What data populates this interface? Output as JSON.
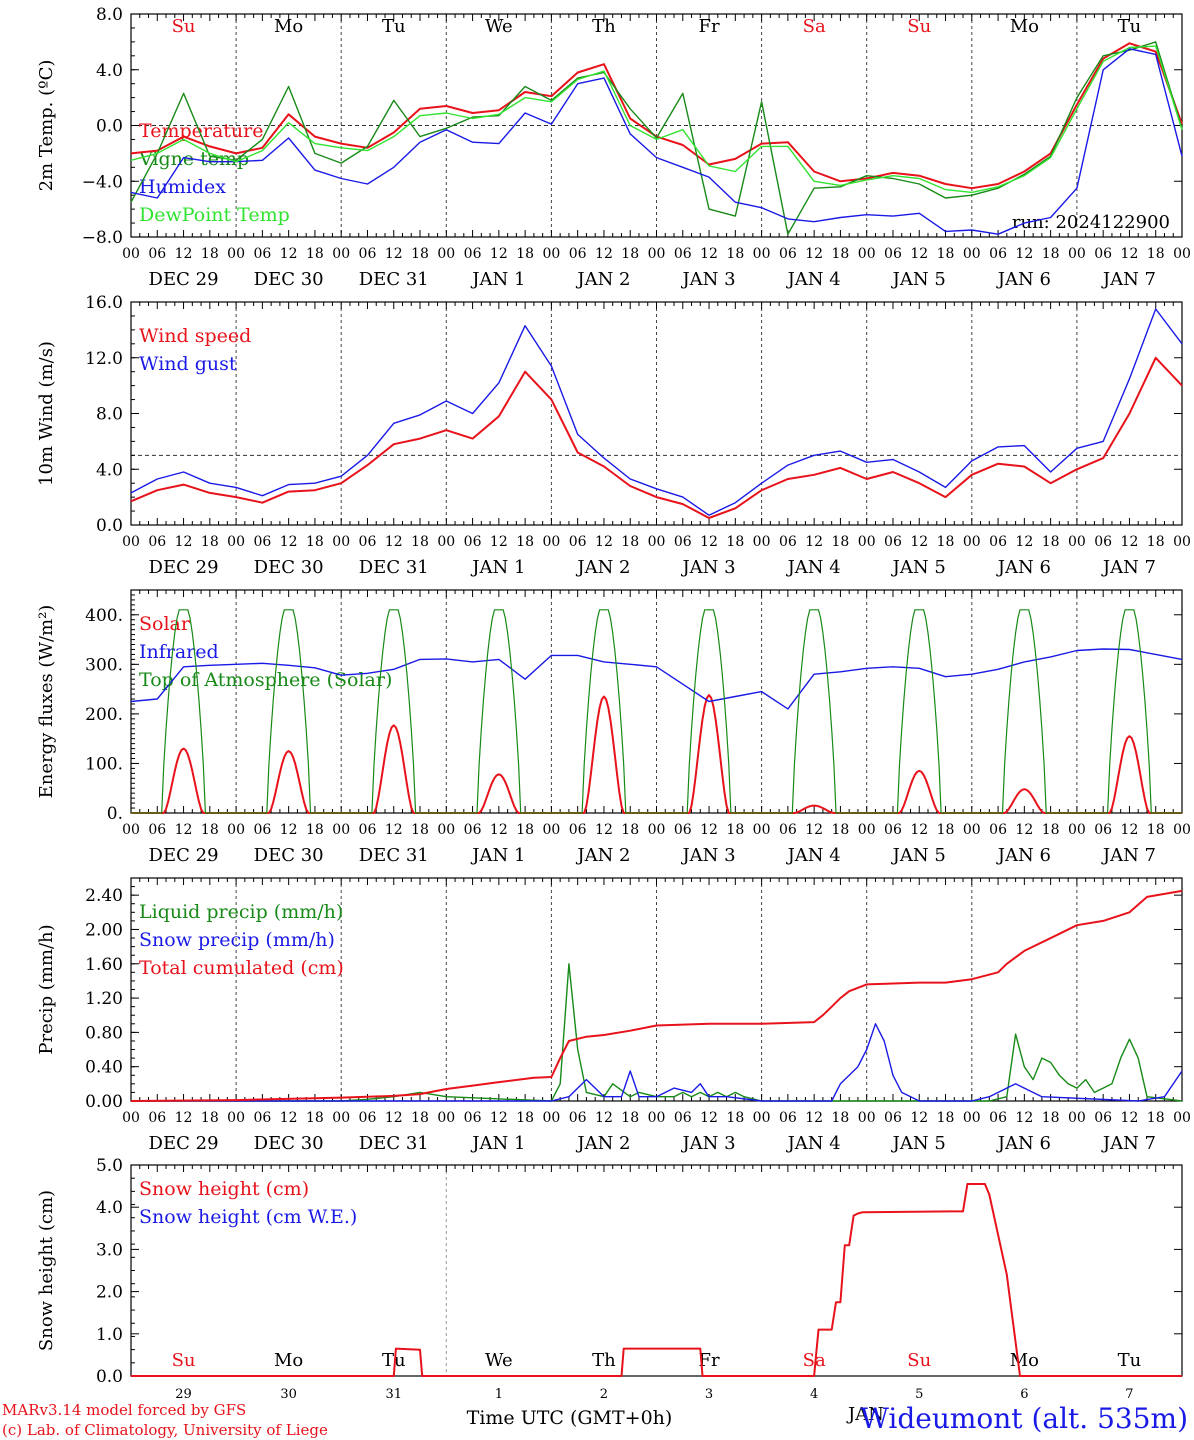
{
  "credits": {
    "model": "MARv3.14 model forced by GFS",
    "lab": "(c) Lab. of Climatology, University of Liege"
  },
  "location": "Wideumont (alt. 535m)",
  "run_label": "run: 2024122900",
  "colors": {
    "red": "#e8121b",
    "green": "#178a17",
    "blue": "#1a1ae6",
    "lightgreen": "#31e331",
    "weekend": "#e8121b",
    "weekday": "#000000"
  },
  "time_axis": {
    "hour_ticks": [
      "00",
      "06",
      "12",
      "18"
    ],
    "day_labels": [
      "DEC 29",
      "DEC 30",
      "DEC 31",
      "JAN  1",
      "JAN  2",
      "JAN  3",
      "JAN  4",
      "JAN  5",
      "JAN  6",
      "JAN  7"
    ],
    "weekdays": [
      "Su",
      "Mo",
      "Tu",
      "We",
      "Th",
      "Fr",
      "Sa",
      "Su",
      "Mo",
      "Tu"
    ],
    "weekend_flags": [
      true,
      false,
      false,
      false,
      false,
      false,
      true,
      true,
      false,
      false
    ],
    "bottom_day_numbers": [
      "29",
      "30",
      "31",
      "1",
      "2",
      "3",
      "4",
      "5",
      "6",
      "7"
    ],
    "bottom_month": "JAN",
    "bottom_title": "Time UTC (GMT+0h)"
  },
  "chart_data": [
    {
      "type": "line",
      "ylabel": "2m Temp. (ºC)",
      "ylim": [
        -8,
        8
      ],
      "yticks": [
        "8.0",
        "4.0",
        "0.0",
        "−4.0",
        "−8.0"
      ],
      "ref_line": 0,
      "x_unit": "hours since DEC 29 00 UTC",
      "series": [
        {
          "name": "Temperature",
          "color": "red",
          "x": [
            0,
            6,
            12,
            18,
            24,
            30,
            36,
            42,
            48,
            54,
            60,
            66,
            72,
            78,
            84,
            90,
            96,
            102,
            108,
            114,
            120,
            126,
            132,
            138,
            144,
            150,
            156,
            162,
            168,
            174,
            180,
            186,
            192,
            198,
            204,
            210,
            216,
            222,
            228,
            234,
            240
          ],
          "y": [
            -2.0,
            -1.8,
            -0.8,
            -1.5,
            -2.0,
            -1.6,
            0.8,
            -0.8,
            -1.3,
            -1.6,
            -0.5,
            1.2,
            1.4,
            0.9,
            1.1,
            2.4,
            2.1,
            3.8,
            4.4,
            0.5,
            -0.8,
            -1.4,
            -2.8,
            -2.4,
            -1.3,
            -1.2,
            -3.3,
            -4.0,
            -3.8,
            -3.4,
            -3.6,
            -4.2,
            -4.5,
            -4.2,
            -3.3,
            -2.0,
            1.5,
            4.8,
            5.9,
            5.3,
            0.1
          ]
        },
        {
          "name": "Vigne temp",
          "color": "green",
          "x": [
            0,
            6,
            12,
            18,
            24,
            30,
            36,
            42,
            48,
            54,
            60,
            66,
            72,
            78,
            84,
            90,
            96,
            102,
            108,
            114,
            120,
            126,
            132,
            138,
            144,
            150,
            156,
            162,
            168,
            174,
            180,
            186,
            192,
            198,
            204,
            210,
            216,
            222,
            228,
            234,
            240
          ],
          "y": [
            -5.5,
            -2.0,
            2.3,
            -2.2,
            -2.5,
            -1.0,
            2.8,
            -2.0,
            -2.7,
            -1.5,
            1.8,
            -0.8,
            -0.2,
            0.6,
            0.7,
            2.8,
            1.8,
            3.4,
            3.8,
            1.2,
            -0.9,
            2.3,
            -6.0,
            -6.5,
            1.7,
            -7.8,
            -4.5,
            -4.4,
            -3.6,
            -3.8,
            -4.2,
            -5.2,
            -5.0,
            -4.5,
            -3.5,
            -2.2,
            2.0,
            5.0,
            5.4,
            6.0,
            -0.2
          ]
        },
        {
          "name": "Humidex",
          "color": "blue",
          "x": [
            0,
            6,
            12,
            18,
            24,
            30,
            36,
            42,
            48,
            54,
            60,
            66,
            72,
            78,
            84,
            90,
            96,
            102,
            108,
            114,
            120,
            126,
            132,
            138,
            144,
            150,
            156,
            162,
            168,
            174,
            180,
            186,
            192,
            198,
            204,
            210,
            216,
            222,
            228,
            234,
            240
          ],
          "y": [
            -4.8,
            -5.2,
            -2.3,
            -2.6,
            -2.6,
            -2.5,
            -0.9,
            -3.2,
            -3.8,
            -4.2,
            -3.0,
            -1.2,
            -0.3,
            -1.2,
            -1.3,
            0.9,
            0.1,
            3.0,
            3.4,
            -0.6,
            -2.3,
            -3.0,
            -3.7,
            -5.5,
            -5.9,
            -6.7,
            -6.9,
            -6.6,
            -6.4,
            -6.5,
            -6.3,
            -7.6,
            -7.5,
            -7.8,
            -7.0,
            -6.6,
            -4.5,
            4.0,
            5.5,
            5.1,
            -2.2
          ]
        },
        {
          "name": "DewPoint Temp",
          "color": "lightgreen",
          "x": [
            0,
            6,
            12,
            18,
            24,
            30,
            36,
            42,
            48,
            54,
            60,
            66,
            72,
            78,
            84,
            90,
            96,
            102,
            108,
            114,
            120,
            126,
            132,
            138,
            144,
            150,
            156,
            162,
            168,
            174,
            180,
            186,
            192,
            198,
            204,
            210,
            216,
            222,
            228,
            234,
            240
          ],
          "y": [
            -2.5,
            -2.0,
            -1.0,
            -2.0,
            -2.6,
            -1.8,
            0.2,
            -1.3,
            -1.6,
            -1.8,
            -0.8,
            0.7,
            0.9,
            0.5,
            0.8,
            2.0,
            1.7,
            3.3,
            3.9,
            0.0,
            -1.0,
            -0.3,
            -2.9,
            -3.3,
            -1.5,
            -1.5,
            -4.0,
            -4.3,
            -3.9,
            -3.6,
            -3.8,
            -4.6,
            -4.8,
            -4.4,
            -3.6,
            -2.3,
            1.2,
            4.6,
            5.6,
            5.7,
            -0.3
          ]
        }
      ]
    },
    {
      "type": "line",
      "ylabel": "10m Wind (m/s)",
      "ylim": [
        0,
        16
      ],
      "yticks": [
        "16.0",
        "12.0",
        "8.0",
        "4.0",
        "0.0"
      ],
      "ref_line": 5,
      "series": [
        {
          "name": "Wind speed",
          "color": "red",
          "x": [
            0,
            6,
            12,
            18,
            24,
            30,
            36,
            42,
            48,
            54,
            60,
            66,
            72,
            78,
            84,
            90,
            96,
            102,
            108,
            114,
            120,
            126,
            132,
            138,
            144,
            150,
            156,
            162,
            168,
            174,
            180,
            186,
            192,
            198,
            204,
            210,
            216,
            222,
            228,
            234,
            240
          ],
          "y": [
            1.7,
            2.5,
            2.9,
            2.3,
            2.0,
            1.6,
            2.4,
            2.5,
            3.0,
            4.3,
            5.8,
            6.2,
            6.8,
            6.2,
            7.8,
            11.0,
            9.0,
            5.2,
            4.2,
            2.8,
            2.0,
            1.5,
            0.5,
            1.2,
            2.5,
            3.3,
            3.6,
            4.1,
            3.3,
            3.8,
            3.0,
            2.0,
            3.6,
            4.4,
            4.2,
            3.0,
            4.0,
            4.8,
            8.0,
            12.0,
            10.0
          ]
        },
        {
          "name": "Wind gust",
          "color": "blue",
          "x": [
            0,
            6,
            12,
            18,
            24,
            30,
            36,
            42,
            48,
            54,
            60,
            66,
            72,
            78,
            84,
            90,
            96,
            102,
            108,
            114,
            120,
            126,
            132,
            138,
            144,
            150,
            156,
            162,
            168,
            174,
            180,
            186,
            192,
            198,
            204,
            210,
            216,
            222,
            228,
            234,
            240
          ],
          "y": [
            2.3,
            3.3,
            3.8,
            3.0,
            2.7,
            2.1,
            2.9,
            3.0,
            3.5,
            5.0,
            7.3,
            7.9,
            8.9,
            8.0,
            10.2,
            14.3,
            11.4,
            6.5,
            4.8,
            3.3,
            2.6,
            2.0,
            0.7,
            1.6,
            3.0,
            4.3,
            5.0,
            5.3,
            4.5,
            4.7,
            3.8,
            2.7,
            4.6,
            5.6,
            5.7,
            3.8,
            5.5,
            6.0,
            10.5,
            15.5,
            13.0
          ]
        }
      ]
    },
    {
      "type": "line",
      "ylabel": "Energy fluxes (W/m²)",
      "ylim": [
        0,
        450
      ],
      "yticks": [
        "400.",
        "300.",
        "200.",
        "100.",
        "0."
      ],
      "series": [
        {
          "name": "Solar",
          "color": "red",
          "peaks": [
            130,
            125,
            177,
            78,
            235,
            238,
            15,
            85,
            48,
            155
          ]
        },
        {
          "name": "Infrared",
          "color": "blue",
          "x": [
            0,
            6,
            12,
            18,
            24,
            30,
            36,
            42,
            48,
            54,
            60,
            66,
            72,
            78,
            84,
            90,
            96,
            102,
            108,
            114,
            120,
            126,
            132,
            138,
            144,
            150,
            156,
            162,
            168,
            174,
            180,
            186,
            192,
            198,
            204,
            210,
            216,
            222,
            228,
            234,
            240
          ],
          "y": [
            225,
            230,
            295,
            298,
            300,
            302,
            298,
            293,
            278,
            282,
            290,
            310,
            311,
            305,
            310,
            270,
            318,
            318,
            305,
            300,
            295,
            260,
            225,
            235,
            245,
            210,
            280,
            285,
            292,
            295,
            292,
            275,
            280,
            290,
            305,
            315,
            328,
            331,
            330,
            320,
            310
          ]
        },
        {
          "name": "Top of Atmosphere (Solar)",
          "color": "green",
          "peak": 410
        }
      ]
    },
    {
      "type": "line",
      "ylabel": "Precip (mm/h)",
      "ylim": [
        0,
        2.6
      ],
      "yticks": [
        "2.40",
        "2.00",
        "1.60",
        "1.20",
        "0.80",
        "0.40",
        "0.00"
      ],
      "series": [
        {
          "name": "Liquid precip (mm/h)",
          "color": "green",
          "x": [
            0,
            48,
            54,
            60,
            66,
            72,
            96,
            98,
            100,
            102,
            104,
            108,
            110,
            114,
            116,
            120,
            124,
            126,
            128,
            130,
            132,
            134,
            136,
            138,
            140,
            144,
            180,
            196,
            200,
            202,
            204,
            206,
            208,
            210,
            212,
            214,
            216,
            218,
            220,
            222,
            224,
            226,
            228,
            230,
            232,
            240
          ],
          "y": [
            0,
            0,
            0.02,
            0.05,
            0.1,
            0.05,
            0,
            0.2,
            1.6,
            0.6,
            0.1,
            0.05,
            0.2,
            0.05,
            0.1,
            0.05,
            0.05,
            0.1,
            0.05,
            0.1,
            0.05,
            0.1,
            0.05,
            0.1,
            0.05,
            0,
            0,
            0,
            0.05,
            0.78,
            0.4,
            0.25,
            0.5,
            0.45,
            0.3,
            0.2,
            0.15,
            0.25,
            0.1,
            0.15,
            0.2,
            0.5,
            0.72,
            0.5,
            0.05,
            0
          ]
        },
        {
          "name": "Snow precip (mm/h)",
          "color": "blue",
          "x": [
            0,
            96,
            100,
            102,
            104,
            106,
            108,
            112,
            114,
            116,
            120,
            124,
            128,
            130,
            132,
            136,
            144,
            160,
            162,
            164,
            166,
            168,
            170,
            172,
            174,
            176,
            180,
            192,
            196,
            200,
            202,
            204,
            208,
            230,
            236,
            240
          ],
          "y": [
            0,
            0,
            0.05,
            0.15,
            0.25,
            0.15,
            0.05,
            0.05,
            0.35,
            0.05,
            0.05,
            0.15,
            0.1,
            0.2,
            0.05,
            0.05,
            0,
            0,
            0.2,
            0.3,
            0.4,
            0.6,
            0.9,
            0.7,
            0.3,
            0.1,
            0,
            0,
            0.05,
            0.15,
            0.2,
            0.15,
            0.05,
            0,
            0.05,
            0.35
          ]
        },
        {
          "name": "Total cumulated (cm)",
          "color": "red",
          "x": [
            0,
            24,
            48,
            60,
            66,
            72,
            78,
            84,
            92,
            96,
            98,
            100,
            104,
            108,
            114,
            120,
            132,
            144,
            156,
            158,
            160,
            162,
            164,
            168,
            174,
            180,
            186,
            192,
            198,
            200,
            204,
            212,
            216,
            222,
            228,
            232,
            240
          ],
          "y": [
            0,
            0.01,
            0.04,
            0.06,
            0.08,
            0.14,
            0.18,
            0.22,
            0.27,
            0.28,
            0.5,
            0.7,
            0.75,
            0.77,
            0.82,
            0.88,
            0.9,
            0.9,
            0.92,
            1.0,
            1.1,
            1.2,
            1.28,
            1.36,
            1.37,
            1.38,
            1.38,
            1.42,
            1.5,
            1.6,
            1.75,
            1.95,
            2.05,
            2.1,
            2.2,
            2.38,
            2.45
          ]
        }
      ]
    },
    {
      "type": "line",
      "ylabel": "Snow height (cm)",
      "ylim": [
        0,
        5
      ],
      "yticks": [
        "5.0",
        "4.0",
        "3.0",
        "2.0",
        "1.0",
        "0.0"
      ],
      "series": [
        {
          "name": "Snow height (cm)",
          "color": "red",
          "x": [
            0,
            60,
            60.5,
            66,
            66.5,
            112,
            112.5,
            130,
            130.5,
            156,
            157,
            160,
            161,
            162,
            163,
            164,
            165,
            166,
            167,
            187,
            190,
            191,
            195,
            196,
            200,
            203,
            240
          ],
          "y": [
            0,
            0,
            0.65,
            0.62,
            0,
            0,
            0.65,
            0.65,
            0,
            0,
            1.1,
            1.1,
            1.75,
            1.75,
            3.1,
            3.1,
            3.8,
            3.85,
            3.88,
            3.9,
            3.9,
            4.55,
            4.55,
            4.3,
            2.4,
            0,
            0
          ]
        },
        {
          "name": "Snow height (cm W.E.)",
          "color": "blue"
        }
      ]
    }
  ]
}
